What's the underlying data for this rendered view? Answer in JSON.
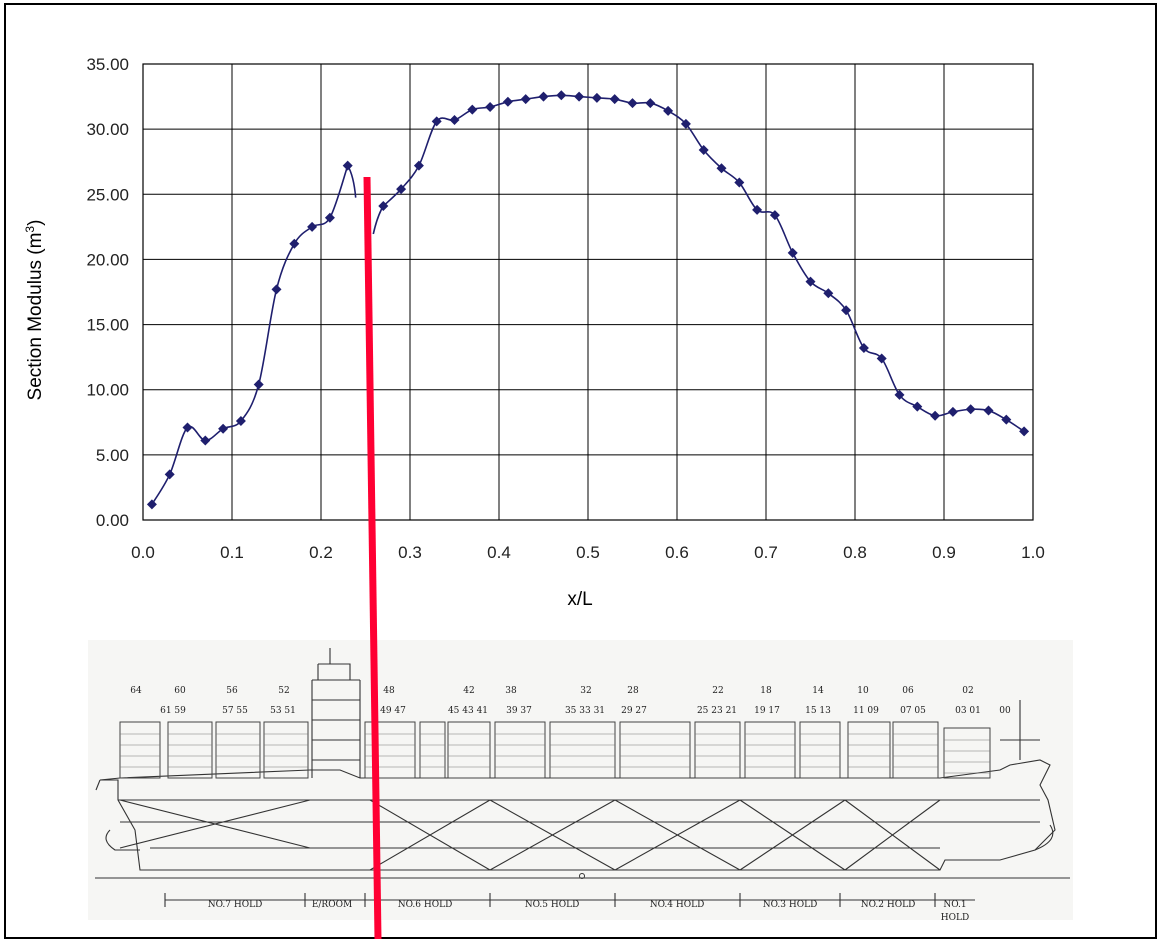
{
  "chart_data": {
    "type": "line",
    "title": "",
    "xlabel": "x/L",
    "ylabel": "Section Modulus (m",
    "ylabel_superscript": "3",
    "ylabel_suffix": ")",
    "xlim": [
      0.0,
      1.0
    ],
    "ylim": [
      0.0,
      35.0
    ],
    "grid": true,
    "legend": "none",
    "x_ticks": [
      "0.0",
      "0.1",
      "0.2",
      "0.3",
      "0.4",
      "0.5",
      "0.6",
      "0.7",
      "0.8",
      "0.9",
      "1.0"
    ],
    "y_ticks": [
      "0.00",
      "5.00",
      "10.00",
      "15.00",
      "20.00",
      "25.00",
      "30.00",
      "35.00"
    ],
    "series": [
      {
        "color": "#1f1f6e",
        "marker": "diamond",
        "x": [
          0.01,
          0.03,
          0.05,
          0.07,
          0.09,
          0.11,
          0.13,
          0.15,
          0.17,
          0.19,
          0.21,
          0.23,
          0.27,
          0.29,
          0.31,
          0.33,
          0.35,
          0.37,
          0.39,
          0.41,
          0.43,
          0.45,
          0.47,
          0.49,
          0.51,
          0.53,
          0.55,
          0.57,
          0.59,
          0.61,
          0.63,
          0.65,
          0.67,
          0.69,
          0.71,
          0.73,
          0.75,
          0.77,
          0.79,
          0.81,
          0.83,
          0.85,
          0.87,
          0.89,
          0.91,
          0.93,
          0.95,
          0.97,
          0.99
        ],
        "y": [
          1.2,
          3.5,
          7.1,
          6.1,
          7.0,
          7.6,
          10.4,
          17.7,
          21.2,
          22.5,
          23.2,
          27.2,
          24.1,
          25.4,
          27.2,
          30.6,
          30.7,
          31.5,
          31.7,
          32.1,
          32.3,
          32.5,
          32.6,
          32.5,
          32.4,
          32.3,
          32.0,
          32.0,
          31.4,
          30.4,
          28.4,
          27.0,
          25.9,
          23.8,
          23.4,
          20.5,
          18.3,
          17.4,
          16.1,
          13.2,
          12.4,
          9.6,
          8.7,
          8.0,
          8.3,
          8.5,
          8.4,
          7.7,
          6.8
        ]
      }
    ]
  },
  "marker_line_color": "#ff0033",
  "ship": {
    "bay_numbers_top": [
      "64",
      "60",
      "56",
      "52",
      "48",
      "42",
      "38",
      "32",
      "28",
      "22",
      "18",
      "14",
      "10",
      "06",
      "02"
    ],
    "bay_numbers_bottom": [
      "61 59",
      "57 55",
      "53 51",
      "49 47",
      "45 43 41",
      "39 37",
      "35 33 31",
      "29 27",
      "25 23 21",
      "19 17",
      "15 13",
      "11 09",
      "07 05",
      "03 01",
      "00"
    ],
    "hold_labels": [
      "NO.7 HOLD",
      "E/ROOM",
      "NO.6 HOLD",
      "NO.5 HOLD",
      "NO.4 HOLD",
      "NO.3 HOLD",
      "NO.2 HOLD",
      "NO.1",
      "HOLD"
    ]
  }
}
